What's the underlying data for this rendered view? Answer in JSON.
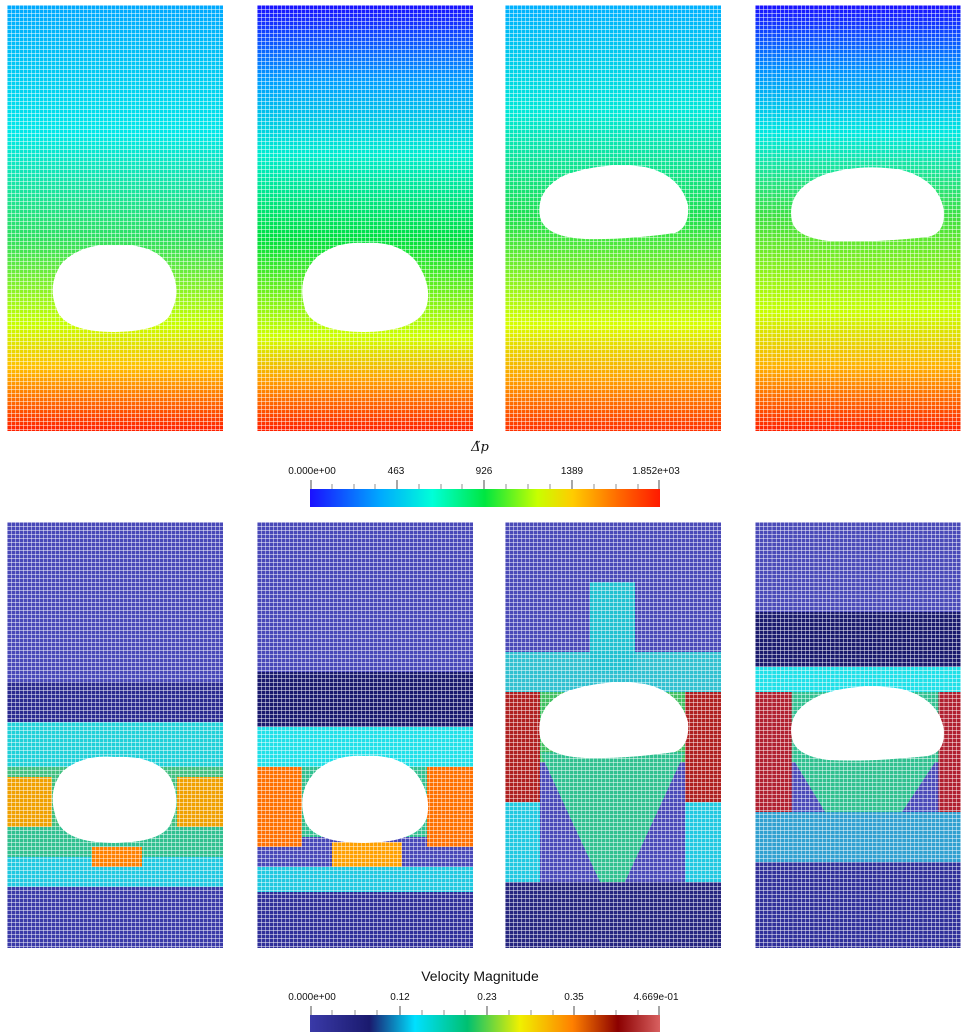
{
  "pressure_colorbar": {
    "title": "Δ̃p",
    "ticks": [
      "0.000e+00",
      "463",
      "926",
      "1389",
      "1.852e+03"
    ],
    "colors": [
      "#1a10ff",
      "#00a8ff",
      "#00ffd8",
      "#00e640",
      "#c8ff00",
      "#ffcc00",
      "#ff6a00",
      "#ff1a00"
    ]
  },
  "velocity_colorbar": {
    "title": "Velocity Magnitude",
    "ticks": [
      "0.000e+00",
      "0.12",
      "0.23",
      "0.35",
      "4.669e-01"
    ],
    "colors": [
      "#3a3aa8",
      "#1a1a6e",
      "#00e0ff",
      "#00c070",
      "#f0f000",
      "#ff8000",
      "#8b0000",
      "#d86060"
    ]
  },
  "panels": {
    "pressure": [
      {
        "field": "pressure",
        "top": "#00a8ff",
        "mid": "#30e060",
        "bottom": "#ff2000"
      },
      {
        "field": "pressure",
        "top": "#1a10ff",
        "mid": "#00e040",
        "bottom": "#ff2000"
      },
      {
        "field": "pressure",
        "top": "#00b0ff",
        "mid": "#20e050",
        "bottom": "#ff3000"
      },
      {
        "field": "pressure",
        "top": "#1a10ff",
        "mid": "#40e040",
        "bottom": "#ff2000"
      }
    ],
    "velocity": [
      {
        "field": "velocity"
      },
      {
        "field": "velocity"
      },
      {
        "field": "velocity"
      },
      {
        "field": "velocity"
      }
    ]
  }
}
